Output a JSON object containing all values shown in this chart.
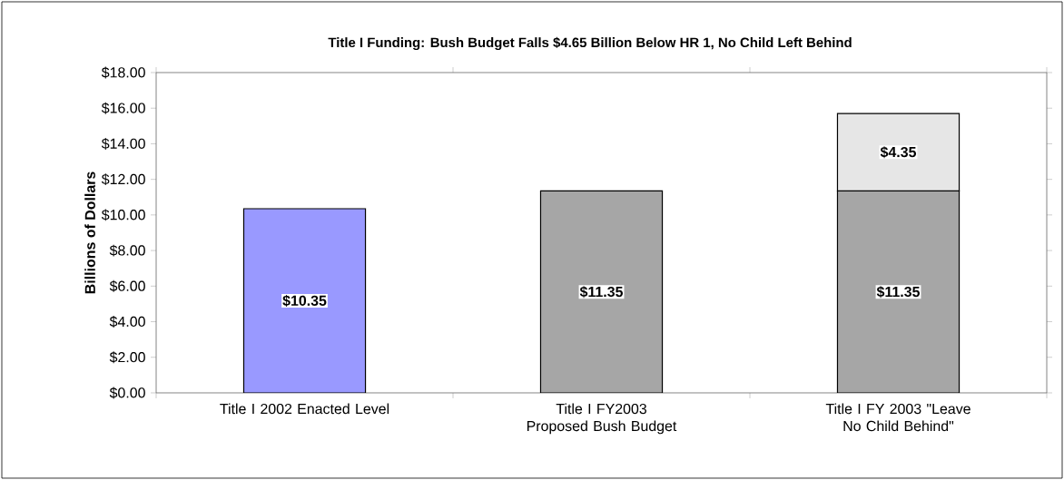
{
  "chart_data": {
    "type": "bar",
    "stacked": true,
    "title": "**Title I Funding:  Bush Budget Falls $4.65 Billion Below HR 1, No Child Left Behind**",
    "ylabel": "Billions of Dollars",
    "categories": [
      "Title I 2002 Enacted Level",
      "Title I FY2003 Proposed Bush Budget",
      "Title I FY 2003 \"Leave No Child Behind\""
    ],
    "series": [
      {
        "colors": [
          "#9999ff",
          "#a6a6a6",
          "#a6a6a6"
        ],
        "values": [
          10.35,
          11.35,
          11.35
        ],
        "value_labels": [
          "$10.35",
          "$11.35",
          "$11.35"
        ]
      },
      {
        "color": "#e6e6e6",
        "values": [
          null,
          null,
          4.35
        ],
        "value_labels": [
          null,
          null,
          "$4.35"
        ]
      }
    ],
    "ylim": [
      0,
      18
    ],
    "yticks": [
      {
        "value": 0,
        "label": "$0.00"
      },
      {
        "value": 2,
        "label": "$2.00"
      },
      {
        "value": 4,
        "label": "$4.00"
      },
      {
        "value": 6,
        "label": "$6.00"
      },
      {
        "value": 8,
        "label": "$8.00"
      },
      {
        "value": 10,
        "label": "$10.00"
      },
      {
        "value": 12,
        "label": "$12.00"
      },
      {
        "value": 14,
        "label": "$14.00"
      },
      {
        "value": 16,
        "label": "$16.00"
      },
      {
        "value": 18,
        "label": "$18.00"
      }
    ],
    "grid": false
  }
}
